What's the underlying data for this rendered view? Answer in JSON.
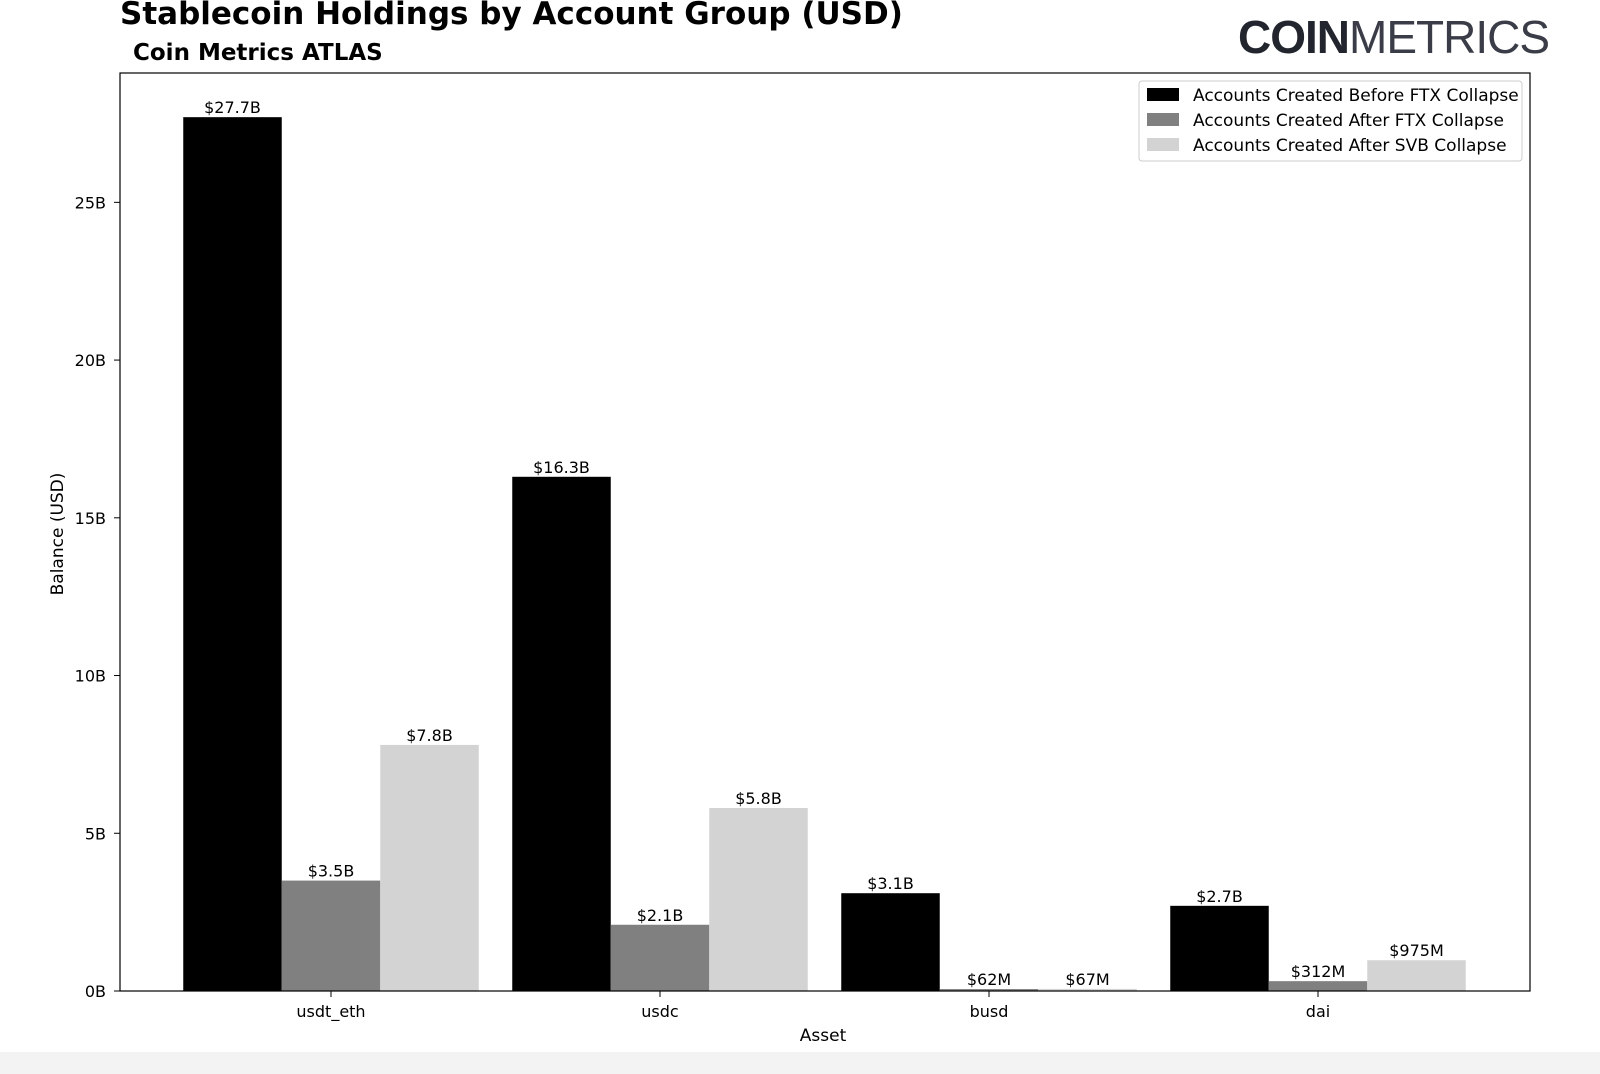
{
  "header": {
    "title": "Stablecoin Holdings by Account Group (USD)",
    "subtitle": "Coin Metrics ATLAS",
    "logo_bold": "COIN",
    "logo_light": "METRICS"
  },
  "chart_data": {
    "type": "bar",
    "categories": [
      "usdt_eth",
      "usdc",
      "busd",
      "dai"
    ],
    "series": [
      {
        "name": "Accounts Created Before FTX Collapse",
        "color": "#000000",
        "values": [
          27.7,
          16.3,
          3.1,
          2.7
        ],
        "labels": [
          "$27.7B",
          "$16.3B",
          "$3.1B",
          "$2.7B"
        ]
      },
      {
        "name": "Accounts Created After FTX Collapse",
        "color": "#808080",
        "values": [
          3.5,
          2.1,
          0.062,
          0.312
        ],
        "labels": [
          "$3.5B",
          "$2.1B",
          "$62M",
          "$312M"
        ]
      },
      {
        "name": "Accounts Created After SVB Collapse",
        "color": "#d3d3d3",
        "values": [
          7.8,
          5.8,
          0.067,
          0.975
        ],
        "labels": [
          "$7.8B",
          "$5.8B",
          "$67M",
          "$975M"
        ]
      }
    ],
    "xlabel": "Asset",
    "ylabel": "Balance (USD)",
    "ylim": [
      0,
      29.1
    ],
    "yticks": [
      0,
      5,
      10,
      15,
      20,
      25
    ],
    "ytick_labels": [
      "0B",
      "5B",
      "10B",
      "15B",
      "20B",
      "25B"
    ],
    "units": "billions USD",
    "legend_position": "top-right",
    "grid": false
  }
}
